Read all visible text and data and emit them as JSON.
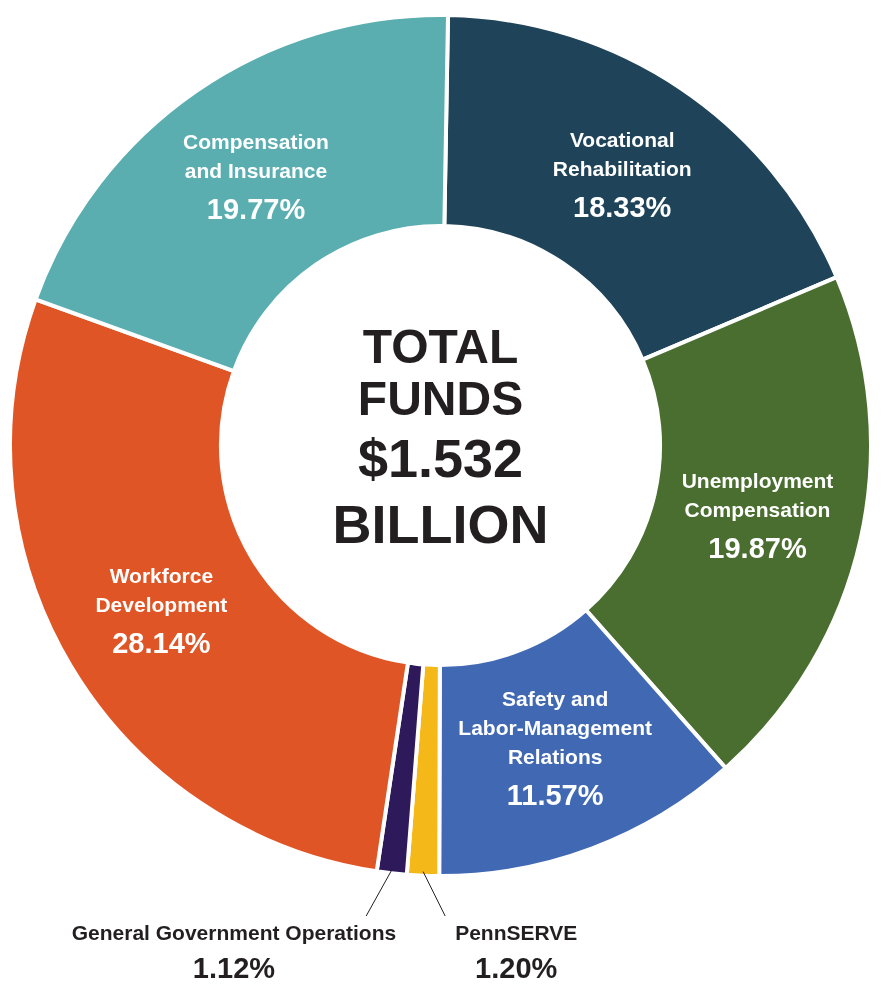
{
  "chart_data": {
    "type": "donut",
    "title": "TOTAL FUNDS",
    "subtitle": "$1.532 BILLION",
    "categories": [
      "Vocational Rehabilitation",
      "Unemployment Compensation",
      "Safety and Labor-Management Relations",
      "PennSERVE",
      "General Government Operations",
      "Workforce Development",
      "Compensation and Insurance"
    ],
    "values": [
      18.33,
      19.87,
      11.57,
      1.2,
      1.12,
      28.14,
      19.77
    ],
    "colors": [
      "#1f4459",
      "#4a6e2f",
      "#4169b3",
      "#f5b819",
      "#2e1a5a",
      "#e05526",
      "#5aaeb0"
    ],
    "value_labels": [
      "18.33%",
      "19.87%",
      "11.57%",
      "1.20%",
      "1.12%",
      "28.14%",
      "19.77%"
    ],
    "legend": false
  }
}
